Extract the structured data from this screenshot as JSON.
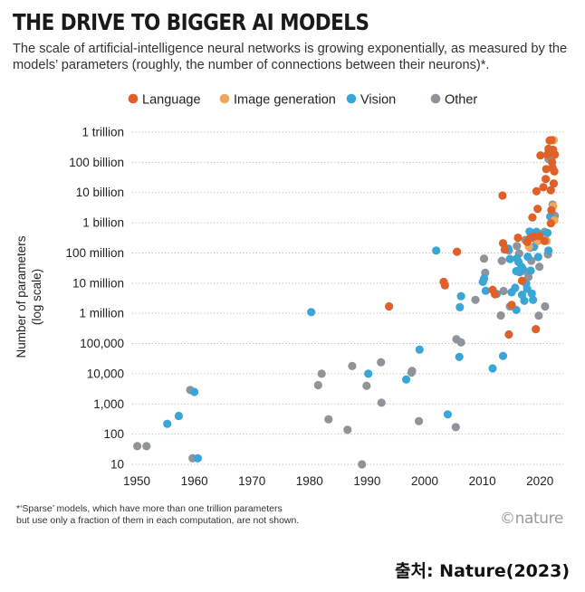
{
  "header": {
    "title": "THE DRIVE TO BIGGER AI MODELS",
    "subtitle": "The scale of artificial-intelligence neural networks is growing exponentially, as measured by the models’ parameters (roughly, the number of connections between their neurons)*."
  },
  "colors": {
    "Language": "#e0602a",
    "Image generation": "#f0a85c",
    "Vision": "#3aa6d8",
    "Other": "#8e949a",
    "grid": "#b8b8b8"
  },
  "chart_data": {
    "type": "scatter",
    "title": "THE DRIVE TO BIGGER AI MODELS",
    "xlabel": "",
    "ylabel_lines": [
      "Number of parameters",
      "(log scale)"
    ],
    "xlim": [
      1950,
      2024
    ],
    "ylim": [
      10,
      1000000000000
    ],
    "y_scale": "log",
    "grid": "horizontal dotted",
    "legend": [
      "Language",
      "Image generation",
      "Vision",
      "Other"
    ],
    "x_ticks": [
      "1950",
      "1960",
      "1970",
      "1980",
      "1990",
      "2000",
      "2010",
      "2020"
    ],
    "x_tick_values": [
      1950,
      1960,
      1970,
      1980,
      1990,
      2000,
      2010,
      2020
    ],
    "y_ticks": [
      "10",
      "100",
      "1,000",
      "10,000",
      "100,000",
      "1 million",
      "10 million",
      "100 million",
      "1 billion",
      "10 billion",
      "100 billion",
      "1 trillion"
    ],
    "series": [
      {
        "name": "Language",
        "points": [
          [
            1993.8,
            1700000.0
          ],
          [
            2003.3,
            11000000.0
          ],
          [
            2003.5,
            8500000.0
          ],
          [
            2005.6,
            110000000.0
          ],
          [
            2011.8,
            6000000.0
          ],
          [
            2012.2,
            4300000.0
          ],
          [
            2013.5,
            8000000000.0
          ],
          [
            2013.6,
            210000000.0
          ],
          [
            2013.9,
            130000000.0
          ],
          [
            2014.6,
            200000.0
          ],
          [
            2015.1,
            1900000.0
          ],
          [
            2016.2,
            320000000.0
          ],
          [
            2016.9,
            12000000.0
          ],
          [
            2017.8,
            230000000.0
          ],
          [
            2018.3,
            310000000.0
          ],
          [
            2018.7,
            1500000000.0
          ],
          [
            2019.0,
            350000000.0
          ],
          [
            2019.3,
            300000.0
          ],
          [
            2019.4,
            11000000000.0
          ],
          [
            2019.6,
            2900000000.0
          ],
          [
            2019.9,
            360000000.0
          ],
          [
            2020.1,
            170000000000.0
          ],
          [
            2020.6,
            15000000000.0
          ],
          [
            2020.8,
            250000000.0
          ],
          [
            2021.0,
            28000000000.0
          ],
          [
            2021.1,
            60000000000.0
          ],
          [
            2021.3,
            180000000000.0
          ],
          [
            2021.5,
            280000000000.0
          ],
          [
            2021.7,
            530000000000.0
          ],
          [
            2021.8,
            230000000000.0
          ],
          [
            2021.9,
            12000000000.0
          ],
          [
            2022.0,
            540000000000.0
          ],
          [
            2022.1,
            100000000000.0
          ],
          [
            2022.2,
            66000000000.0
          ],
          [
            2022.3,
            260000000000.0
          ],
          [
            2022.4,
            20000000000.0
          ],
          [
            2022.5,
            50000000000.0
          ],
          [
            2022.6,
            180000000000.0
          ],
          [
            2022.0,
            2600000000.0
          ],
          [
            2021.9,
            960000000.0
          ]
        ]
      },
      {
        "name": "Image generation",
        "points": [
          [
            2018.1,
            160000000.0
          ],
          [
            2019.7,
            250000000.0
          ],
          [
            2020.5,
            280000000.0
          ],
          [
            2021.2,
            250000000.0
          ],
          [
            2022.3,
            3500000000.0
          ],
          [
            2022.4,
            540000000000.0
          ],
          [
            2022.5,
            1200000000.0
          ]
        ]
      },
      {
        "name": "Vision",
        "points": [
          [
            1955.3,
            220
          ],
          [
            1957.3,
            400
          ],
          [
            1960.0,
            2500
          ],
          [
            1960.6,
            16
          ],
          [
            1980.3,
            1100000.0
          ],
          [
            1990.2,
            10000.0
          ],
          [
            1996.8,
            6500.0
          ],
          [
            1999.1,
            63000.0
          ],
          [
            2002.0,
            120000000.0
          ],
          [
            2004.0,
            450
          ],
          [
            2006.0,
            36000.0
          ],
          [
            2006.1,
            1600000.0
          ],
          [
            2006.3,
            3700000.0
          ],
          [
            2010.1,
            11000000.0
          ],
          [
            2010.3,
            14000000.0
          ],
          [
            2010.6,
            5600000.0
          ],
          [
            2011.8,
            15000.0
          ],
          [
            2012.5,
            4400000.0
          ],
          [
            2013.6,
            39000.0
          ],
          [
            2014.5,
            140000000.0
          ],
          [
            2014.8,
            63000000.0
          ],
          [
            2015.1,
            5000000.0
          ],
          [
            2015.7,
            7000000.0
          ],
          [
            2015.9,
            1300000.0
          ],
          [
            2015.9,
            25000000.0
          ],
          [
            2016.0,
            66000000.0
          ],
          [
            2016.3,
            50000000.0
          ],
          [
            2016.5,
            23000000.0
          ],
          [
            2016.8,
            35000000.0
          ],
          [
            2016.9,
            4100000.0
          ],
          [
            2017.0,
            30000000.0
          ],
          [
            2017.3,
            2600000.0
          ],
          [
            2017.6,
            9600000.0
          ],
          [
            2017.8,
            6500000.0
          ],
          [
            2017.9,
            75000000.0
          ],
          [
            2018.2,
            510000000.0
          ],
          [
            2018.4,
            26000000.0
          ],
          [
            2018.6,
            4500000.0
          ],
          [
            2018.8,
            2800000.0
          ],
          [
            2019.0,
            160000000.0
          ],
          [
            2019.4,
            500000000.0
          ],
          [
            2019.7,
            73000000.0
          ],
          [
            2019.9,
            420000000.0
          ],
          [
            2021.3,
            460000000.0
          ],
          [
            2021.8,
            1600000000.0
          ],
          [
            2021.5,
            120000000.0
          ]
        ]
      },
      {
        "name": "Other",
        "points": [
          [
            1950.1,
            40
          ],
          [
            1951.7,
            40
          ],
          [
            1959.3,
            2900
          ],
          [
            1959.7,
            16
          ],
          [
            1981.5,
            4200
          ],
          [
            1982.1,
            10000.0
          ],
          [
            1983.3,
            310
          ],
          [
            1986.6,
            140
          ],
          [
            1987.4,
            18000.0
          ],
          [
            1989.1,
            10
          ],
          [
            1989.9,
            4000
          ],
          [
            1992.4,
            24000.0
          ],
          [
            1992.5,
            1100
          ],
          [
            1997.7,
            11000.0
          ],
          [
            1997.8,
            12500.0
          ],
          [
            1999.0,
            270
          ],
          [
            2005.4,
            170
          ],
          [
            2005.5,
            140000.0
          ],
          [
            2006.3,
            110000.0
          ],
          [
            2008.8,
            2800000.0
          ],
          [
            2010.3,
            65000000.0
          ],
          [
            2010.5,
            22000000.0
          ],
          [
            2013.2,
            850000.0
          ],
          [
            2013.4,
            55000000.0
          ],
          [
            2013.7,
            5500000.0
          ],
          [
            2014.6,
            120000000.0
          ],
          [
            2014.8,
            1700000.0
          ],
          [
            2016.0,
            170000000.0
          ],
          [
            2016.4,
            96000000.0
          ],
          [
            2017.2,
            26000000.0
          ],
          [
            2017.5,
            270000000.0
          ],
          [
            2018.0,
            16000000.0
          ],
          [
            2018.3,
            150000000.0
          ],
          [
            2018.5,
            55000000.0
          ],
          [
            2019.1,
            300000000.0
          ],
          [
            2019.8,
            840000.0
          ],
          [
            2019.9,
            35000000.0
          ],
          [
            2020.9,
            1700000.0
          ],
          [
            2021.0,
            400000000.0
          ],
          [
            2021.4,
            90000000.0
          ],
          [
            2021.5,
            130000000000.0
          ],
          [
            2022.0,
            120000000000.0
          ],
          [
            2022.2,
            4000000000.0
          ],
          [
            2022.6,
            1700000000.0
          ],
          [
            2020.8,
            500000000.0
          ],
          [
            2022.1,
            1500000000.0
          ]
        ]
      }
    ]
  },
  "footer": {
    "footnote_line1": "*‘Sparse’ models, which have more than one trillion parameters",
    "footnote_line2": "but use only a fraction of them in each computation, are not shown.",
    "brand": "©nature",
    "credit": "출처: Nature(2023)"
  }
}
